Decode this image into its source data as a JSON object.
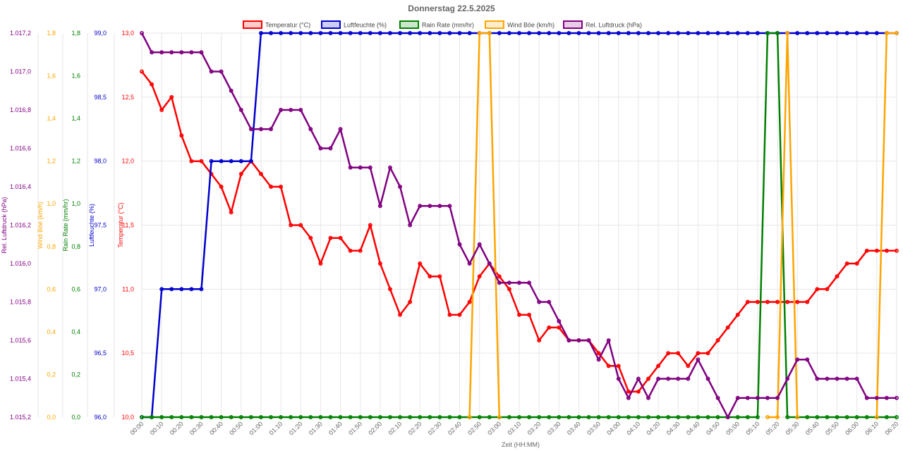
{
  "chart_data": {
    "type": "line",
    "title": "Donnerstag 22.5.2025",
    "xlabel": "Zeit (HH:MM)",
    "grid": true,
    "legend_position": "top",
    "x": [
      "00:00",
      "00:05",
      "00:10",
      "00:15",
      "00:20",
      "00:25",
      "00:30",
      "00:35",
      "00:40",
      "00:45",
      "00:50",
      "00:55",
      "01:00",
      "01:05",
      "01:10",
      "01:15",
      "01:20",
      "01:25",
      "01:30",
      "01:35",
      "01:40",
      "01:45",
      "01:50",
      "01:55",
      "02:00",
      "02:05",
      "02:10",
      "02:15",
      "02:20",
      "02:25",
      "02:30",
      "02:35",
      "02:40",
      "02:45",
      "02:50",
      "02:55",
      "03:00",
      "03:05",
      "03:10",
      "03:15",
      "03:20",
      "03:25",
      "03:30",
      "03:35",
      "03:40",
      "03:45",
      "03:50",
      "03:55",
      "04:00",
      "04:05",
      "04:10",
      "04:15",
      "04:20",
      "04:25",
      "04:30",
      "04:35",
      "04:40",
      "04:45",
      "04:50",
      "04:55",
      "05:00",
      "05:05",
      "05:10",
      "05:15",
      "05:20",
      "05:25",
      "05:30",
      "05:35",
      "05:40",
      "05:45",
      "05:50",
      "05:55",
      "06:00",
      "06:05",
      "06:10",
      "06:15",
      "06:20"
    ],
    "x_tick_labels": [
      "00:00",
      "00:10",
      "00:20",
      "00:30",
      "00:40",
      "00:50",
      "01:00",
      "01:10",
      "01:20",
      "01:30",
      "01:40",
      "01:50",
      "02:00",
      "02:10",
      "02:20",
      "02:30",
      "02:40",
      "02:50",
      "03:00",
      "03:10",
      "03:20",
      "03:30",
      "03:40",
      "03:50",
      "04:00",
      "04:10",
      "04:20",
      "04:30",
      "04:40",
      "04:50",
      "05:00",
      "05:10",
      "05:20",
      "05:30",
      "05:40",
      "05:50",
      "06:00",
      "06:10",
      "06:20"
    ],
    "axes": [
      {
        "id": "pressure",
        "label": "Rel. Luftdruck (hPa)",
        "min": 1015.2,
        "max": 1017.2,
        "step": 0.2,
        "color": "#800080",
        "decimals": 1,
        "thousands": true
      },
      {
        "id": "wind",
        "label": "Wind Böe (km/h)",
        "min": 0,
        "max": 1.8,
        "step": 0.2,
        "color": "#FFA500",
        "decimals": 1
      },
      {
        "id": "rain",
        "label": "Rain Rate (mm/hr)",
        "min": 0,
        "max": 1.8,
        "step": 0.2,
        "color": "#008000",
        "decimals": 1
      },
      {
        "id": "humidity",
        "label": "Luftfeuchte (%)",
        "min": 96.0,
        "max": 99.0,
        "step": 0.5,
        "color": "#0000CD",
        "decimals": 1
      },
      {
        "id": "temp",
        "label": "Temperatur (°C)",
        "min": 10.0,
        "max": 13.0,
        "step": 0.5,
        "color": "#FF0000",
        "decimals": 1
      }
    ],
    "series": [
      {
        "name": "Temperatur (°C)",
        "axis": "temp",
        "color": "#FF0000",
        "fill": "rgba(255,0,0,0.2)",
        "values": [
          12.7,
          12.6,
          12.4,
          12.5,
          12.2,
          12.0,
          12.0,
          11.9,
          11.8,
          11.6,
          11.9,
          12.0,
          11.9,
          11.8,
          11.8,
          11.5,
          11.5,
          11.4,
          11.2,
          11.4,
          11.4,
          11.3,
          11.3,
          11.5,
          11.2,
          11.0,
          10.8,
          10.9,
          11.2,
          11.1,
          11.1,
          10.8,
          10.8,
          10.9,
          11.1,
          11.2,
          11.1,
          11.0,
          10.8,
          10.8,
          10.6,
          10.7,
          10.7,
          10.6,
          10.6,
          10.6,
          10.5,
          10.4,
          10.4,
          10.2,
          10.2,
          10.3,
          10.4,
          10.5,
          10.5,
          10.4,
          10.5,
          10.5,
          10.6,
          10.7,
          10.8,
          10.9,
          10.9,
          10.9,
          10.9,
          10.9,
          10.9,
          10.9,
          11.0,
          11.0,
          11.1,
          11.2,
          11.2,
          11.3,
          11.3,
          11.3,
          11.3
        ]
      },
      {
        "name": "Luftfeuchte (%)",
        "axis": "humidity",
        "color": "#0000CD",
        "fill": "rgba(0,0,205,0.2)",
        "values": [
          96.0,
          96.0,
          97.0,
          97.0,
          97.0,
          97.0,
          97.0,
          98.0,
          98.0,
          98.0,
          98.0,
          98.0,
          99.0,
          99.0,
          99.0,
          99.0,
          99.0,
          99.0,
          99.0,
          99.0,
          99.0,
          99.0,
          99.0,
          99.0,
          99.0,
          99.0,
          99.0,
          99.0,
          99.0,
          99.0,
          99.0,
          99.0,
          99.0,
          99.0,
          99.0,
          99.0,
          99.0,
          99.0,
          99.0,
          99.0,
          99.0,
          99.0,
          99.0,
          99.0,
          99.0,
          99.0,
          99.0,
          99.0,
          99.0,
          99.0,
          99.0,
          99.0,
          99.0,
          99.0,
          99.0,
          99.0,
          99.0,
          99.0,
          99.0,
          99.0,
          99.0,
          99.0,
          99.0,
          99.0,
          99.0,
          99.0,
          99.0,
          99.0,
          99.0,
          99.0,
          99.0,
          99.0,
          99.0,
          99.0,
          99.0,
          99.0,
          99.0
        ]
      },
      {
        "name": "Rain Rate (mm/hr)",
        "axis": "rain",
        "color": "#008000",
        "fill": "rgba(0,128,0,0.2)",
        "values": [
          0,
          0,
          0,
          0,
          0,
          0,
          0,
          0,
          0,
          0,
          0,
          0,
          0,
          0,
          0,
          0,
          0,
          0,
          0,
          0,
          0,
          0,
          0,
          0,
          0,
          0,
          0,
          0,
          0,
          0,
          0,
          0,
          0,
          0,
          0,
          0,
          0,
          0,
          0,
          0,
          0,
          0,
          0,
          0,
          0,
          0,
          0,
          0,
          0,
          0,
          0,
          0,
          0,
          0,
          0,
          0,
          0,
          0,
          0,
          0,
          0,
          0,
          0,
          1.8,
          1.8,
          0,
          0,
          0,
          0,
          0,
          0,
          0,
          0,
          0,
          0,
          0,
          0
        ]
      },
      {
        "name": "Wind Böe (km/h)",
        "axis": "wind",
        "color": "#FFA500",
        "fill": "rgba(255,165,0,0.2)",
        "values": [
          null,
          null,
          null,
          null,
          null,
          null,
          null,
          null,
          null,
          null,
          null,
          null,
          null,
          null,
          null,
          null,
          null,
          null,
          null,
          null,
          null,
          null,
          null,
          null,
          null,
          null,
          null,
          null,
          null,
          null,
          null,
          null,
          null,
          0,
          1.8,
          1.8,
          0,
          null,
          null,
          null,
          null,
          null,
          null,
          null,
          null,
          null,
          null,
          null,
          null,
          null,
          null,
          null,
          null,
          null,
          null,
          null,
          null,
          null,
          null,
          null,
          null,
          null,
          null,
          0,
          0,
          1.8,
          0,
          null,
          null,
          null,
          null,
          null,
          null,
          null,
          0,
          1.8,
          1.8
        ]
      },
      {
        "name": "Rel. Luftdruck (hPa)",
        "axis": "pressure",
        "color": "#800080",
        "fill": "rgba(128,0,128,0.2)",
        "values": [
          1017.2,
          1017.1,
          1017.1,
          1017.1,
          1017.1,
          1017.1,
          1017.1,
          1017.0,
          1017.0,
          1016.9,
          1016.8,
          1016.7,
          1016.7,
          1016.7,
          1016.8,
          1016.8,
          1016.8,
          1016.7,
          1016.6,
          1016.6,
          1016.7,
          1016.5,
          1016.5,
          1016.5,
          1016.3,
          1016.5,
          1016.4,
          1016.2,
          1016.3,
          1016.3,
          1016.3,
          1016.3,
          1016.1,
          1016.0,
          1016.1,
          1016.0,
          1015.9,
          1015.9,
          1015.9,
          1015.9,
          1015.8,
          1015.8,
          1015.7,
          1015.6,
          1015.6,
          1015.6,
          1015.5,
          1015.6,
          1015.4,
          1015.3,
          1015.4,
          1015.3,
          1015.4,
          1015.4,
          1015.4,
          1015.4,
          1015.5,
          1015.4,
          1015.3,
          1015.2,
          1015.3,
          1015.3,
          1015.3,
          1015.3,
          1015.3,
          1015.4,
          1015.5,
          1015.5,
          1015.4,
          1015.4,
          1015.4,
          1015.4,
          1015.4,
          1015.3,
          1015.3,
          1015.3,
          1015.3
        ]
      }
    ]
  }
}
